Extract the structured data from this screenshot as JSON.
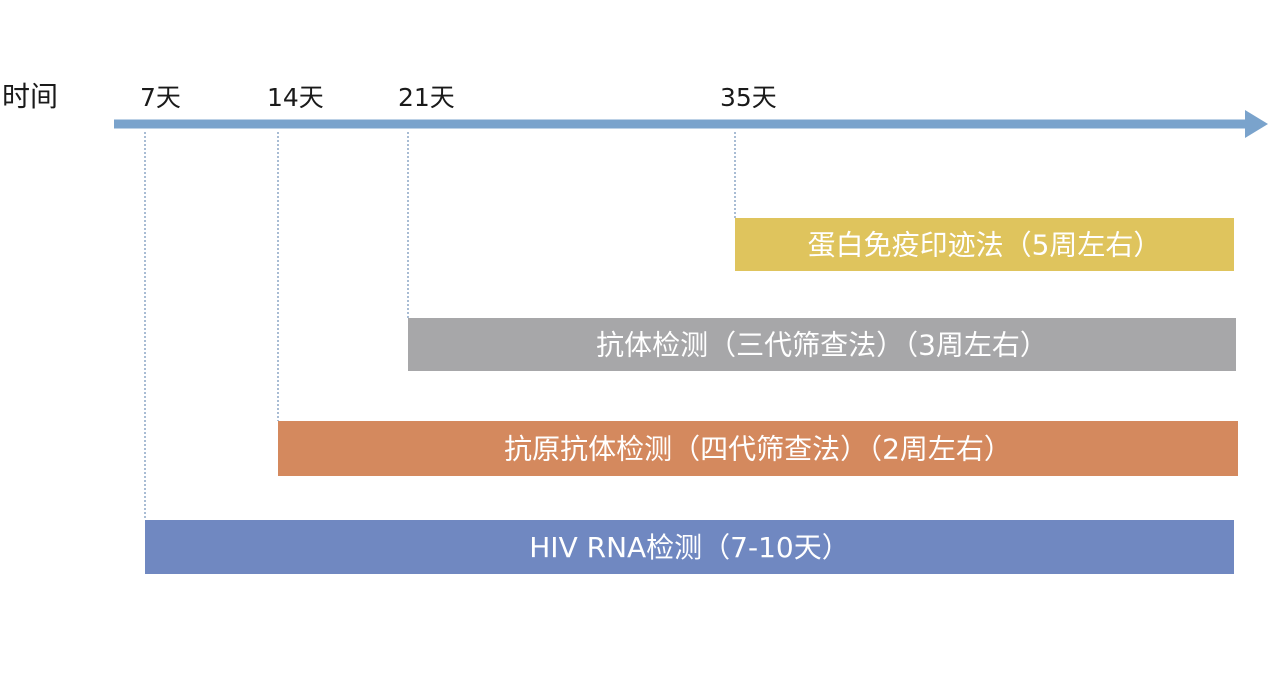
{
  "axis": {
    "label": "时间",
    "color": "#7aa3cc"
  },
  "ticks": [
    {
      "day": 7,
      "label": "7天"
    },
    {
      "day": 14,
      "label": "14天"
    },
    {
      "day": 21,
      "label": "21天"
    },
    {
      "day": 35,
      "label": "35天"
    }
  ],
  "bars": [
    {
      "start_day": 35,
      "label": "蛋白免疫印迹法（5周左右）",
      "color": "#dfc45d"
    },
    {
      "start_day": 21,
      "label": "抗体检测（三代筛查法）（3周左右）",
      "color": "#a7a7a9"
    },
    {
      "start_day": 14,
      "label": "抗原抗体检测（四代筛查法）（2周左右）",
      "color": "#d4895e"
    },
    {
      "start_day": 7,
      "label": "HIV RNA检测（7-10天）",
      "color": "#7088c1"
    }
  ]
}
